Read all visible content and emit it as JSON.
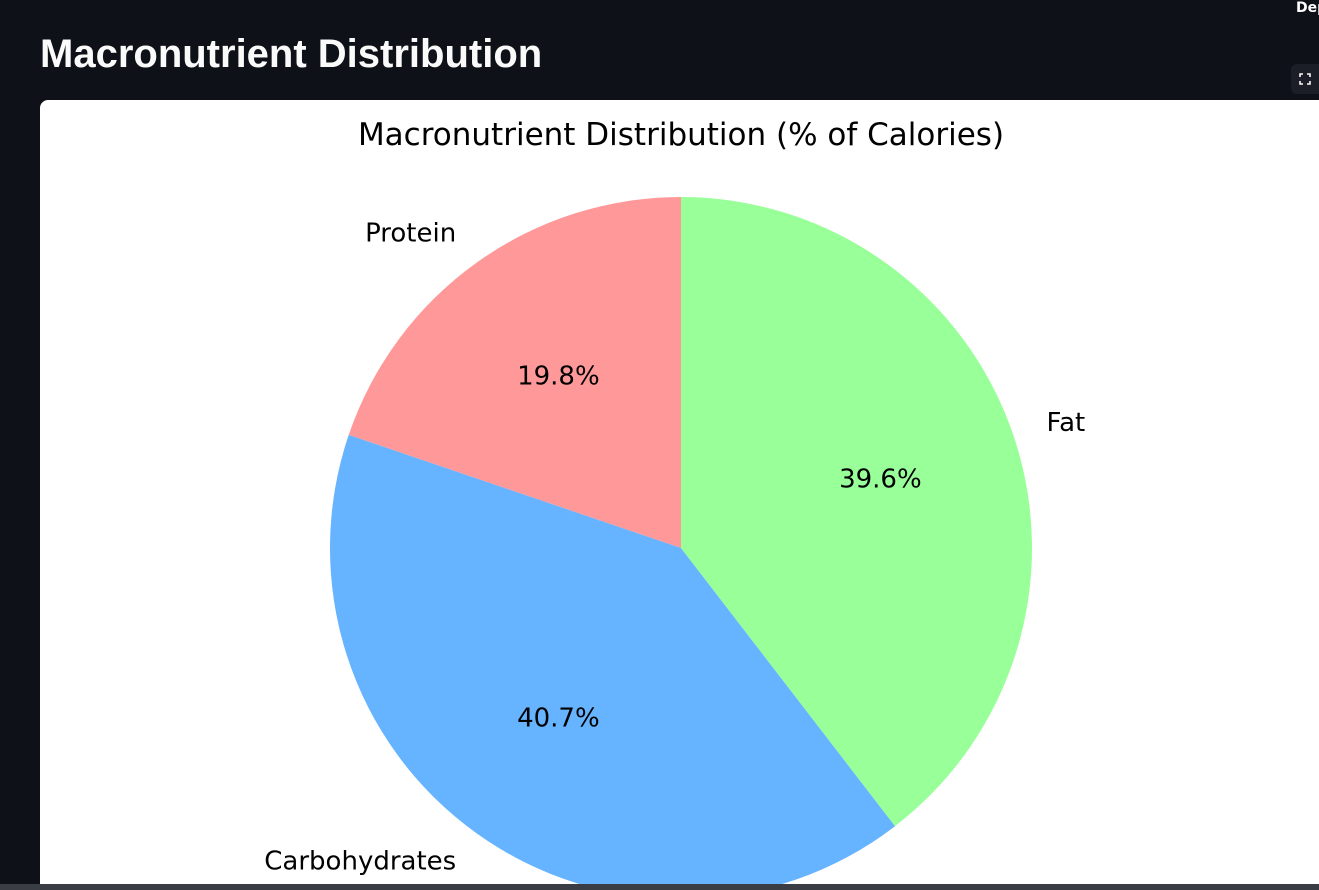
{
  "app": {
    "deploy_label": "Dep",
    "page_title": "Macronutrient Distribution"
  },
  "icons": {
    "fullscreen": "fullscreen-expand-icon"
  },
  "colors": {
    "background": "#0e1117",
    "card": "#ffffff"
  },
  "chart_data": {
    "type": "pie",
    "title": "Macronutrient Distribution (% of Calories)",
    "categories": [
      "Protein",
      "Carbohydrates",
      "Fat"
    ],
    "values": [
      19.8,
      40.7,
      39.6
    ],
    "value_labels": [
      "19.8%",
      "40.7%",
      "39.6%"
    ],
    "colors": [
      "#ff9999",
      "#66b3ff",
      "#99ff99"
    ],
    "start_angle_deg": 90,
    "direction": "counterclockwise"
  }
}
